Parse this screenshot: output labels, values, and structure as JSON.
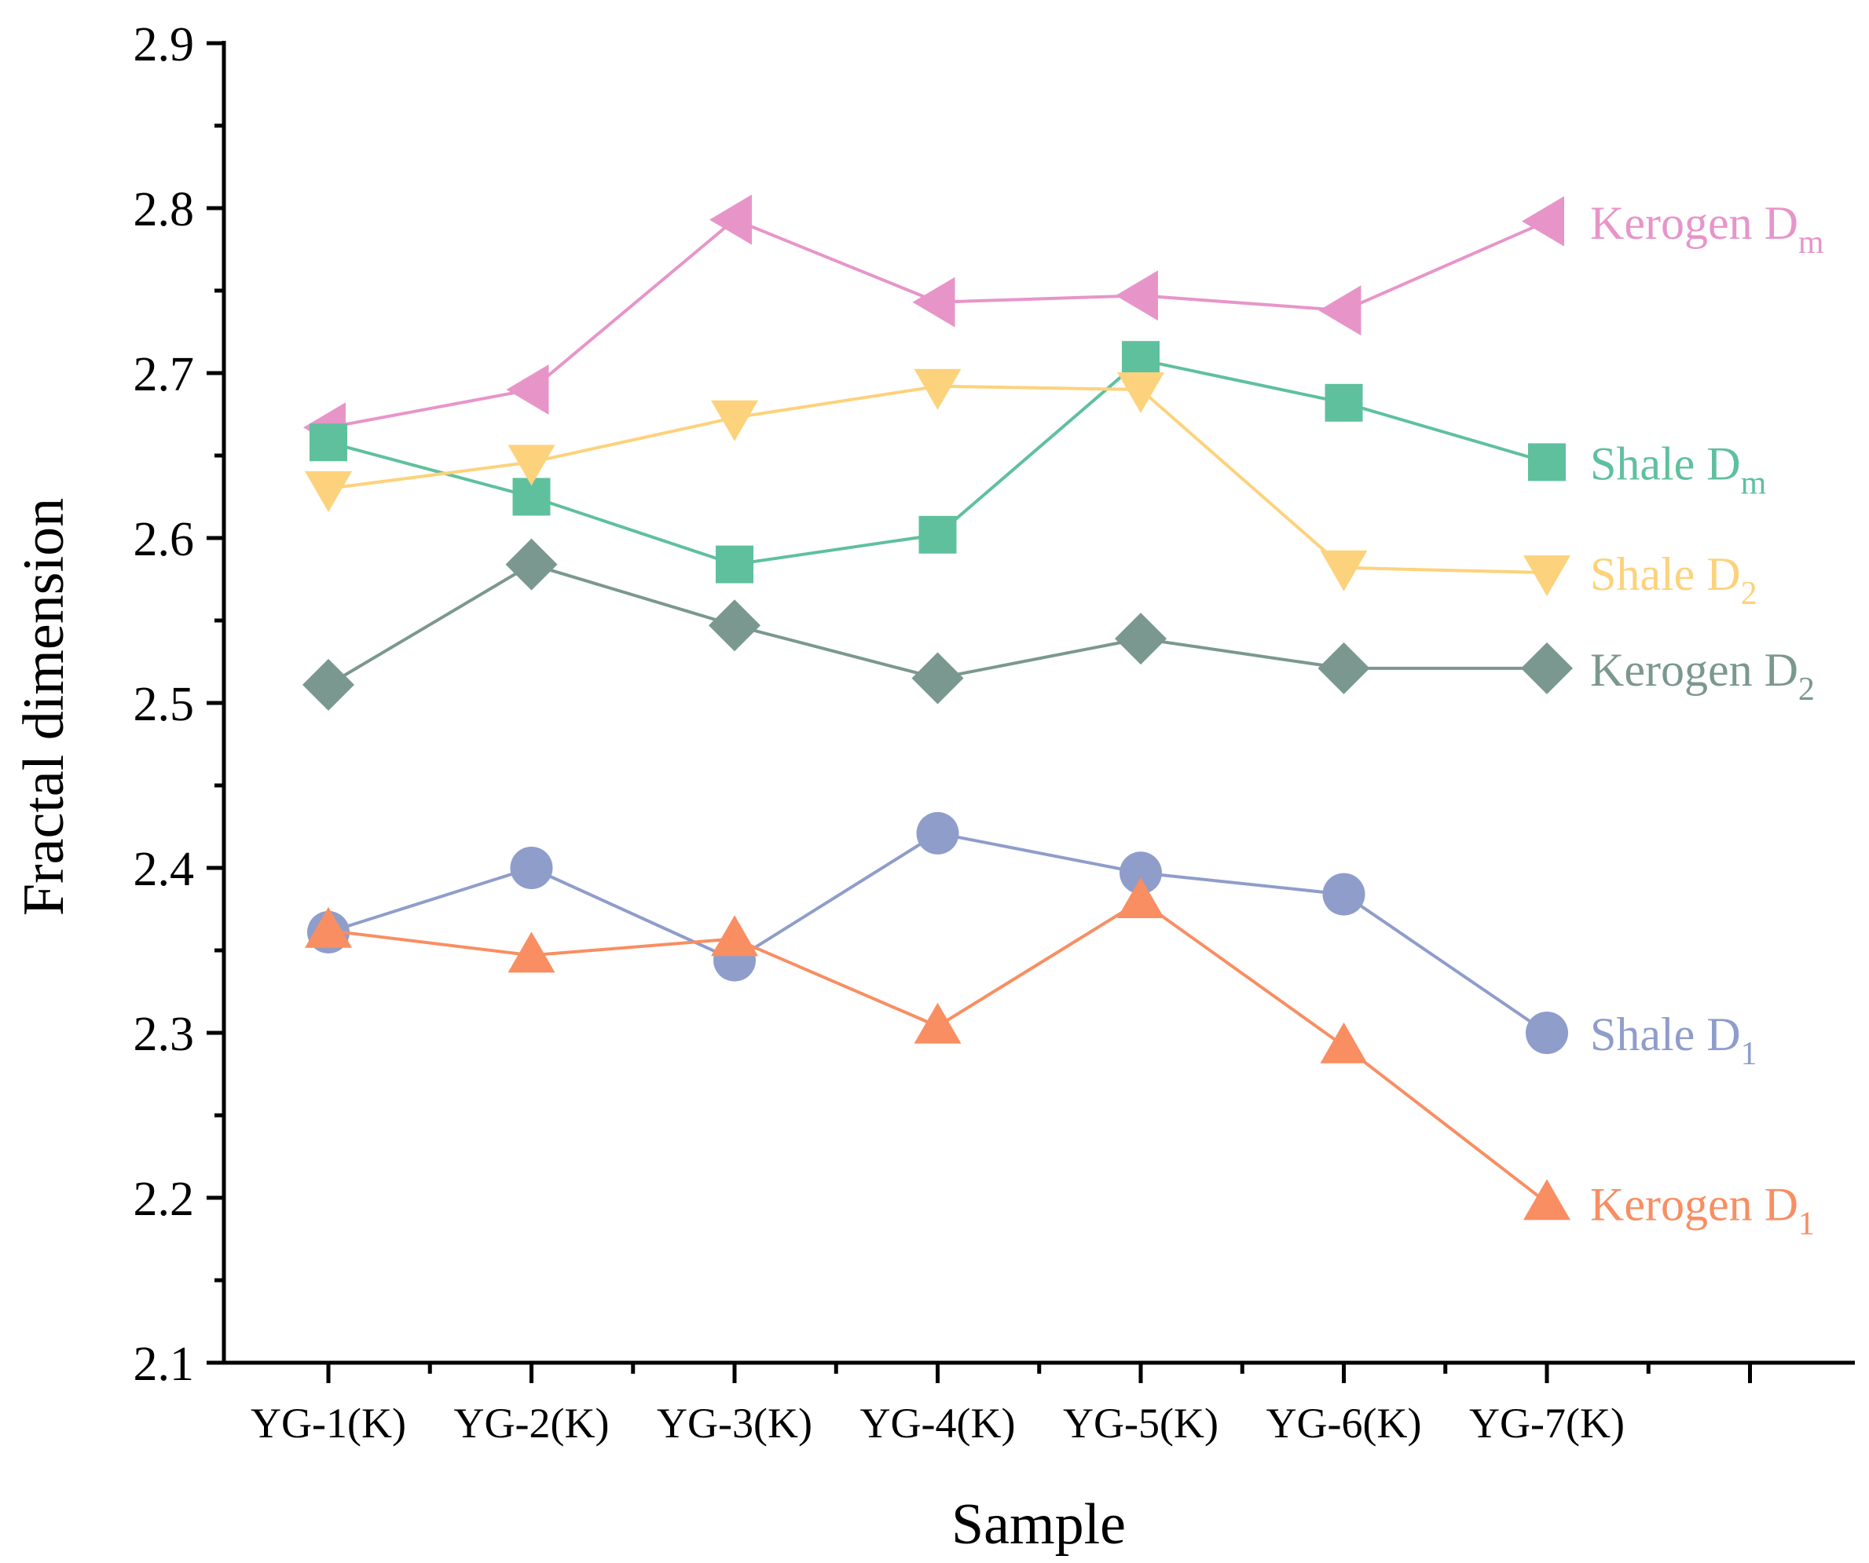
{
  "chart_data": {
    "type": "line",
    "title": "",
    "xlabel": "Sample",
    "ylabel": "Fractal dimension",
    "ylim": [
      2.1,
      2.9
    ],
    "yticks": [
      "2.1",
      "2.2",
      "2.3",
      "2.4",
      "2.5",
      "2.6",
      "2.7",
      "2.8",
      "2.9"
    ],
    "categories": [
      "YG-1(K)",
      "YG-2(K)",
      "YG-3(K)",
      "YG-4(K)",
      "YG-5(K)",
      "YG-6(K)",
      "YG-7(K)"
    ],
    "legend_placement": "inline-right",
    "grid": false,
    "series": [
      {
        "name": "Kerogen Dm",
        "label_main": "Kerogen D",
        "label_sub": "m",
        "color": "#e795c9",
        "marker": "triangle-left",
        "values": [
          2.667,
          2.69,
          2.793,
          2.743,
          2.747,
          2.738,
          2.792
        ]
      },
      {
        "name": "Shale Dm",
        "label_main": "Shale D",
        "label_sub": "m",
        "color": "#5fc09e",
        "marker": "square",
        "values": [
          2.658,
          2.625,
          2.584,
          2.602,
          2.708,
          2.682,
          2.646
        ]
      },
      {
        "name": "Shale D2",
        "label_main": "Shale D",
        "label_sub": "2",
        "color": "#fdd27c",
        "marker": "triangle-down",
        "values": [
          2.63,
          2.646,
          2.673,
          2.692,
          2.69,
          2.582,
          2.579
        ]
      },
      {
        "name": "Kerogen D2",
        "label_main": "Kerogen D",
        "label_sub": "2",
        "color": "#7b9890",
        "marker": "diamond",
        "values": [
          2.511,
          2.584,
          2.547,
          2.515,
          2.539,
          2.521,
          2.521
        ]
      },
      {
        "name": "Shale D1",
        "label_main": "Shale D",
        "label_sub": "1",
        "color": "#8f9dcb",
        "marker": "circle",
        "values": [
          2.361,
          2.4,
          2.344,
          2.421,
          2.397,
          2.384,
          2.3
        ]
      },
      {
        "name": "Kerogen D1",
        "label_main": "Kerogen D",
        "label_sub": "1",
        "color": "#f88e62",
        "marker": "triangle-up",
        "values": [
          2.362,
          2.347,
          2.357,
          2.304,
          2.38,
          2.292,
          2.197
        ]
      }
    ]
  }
}
